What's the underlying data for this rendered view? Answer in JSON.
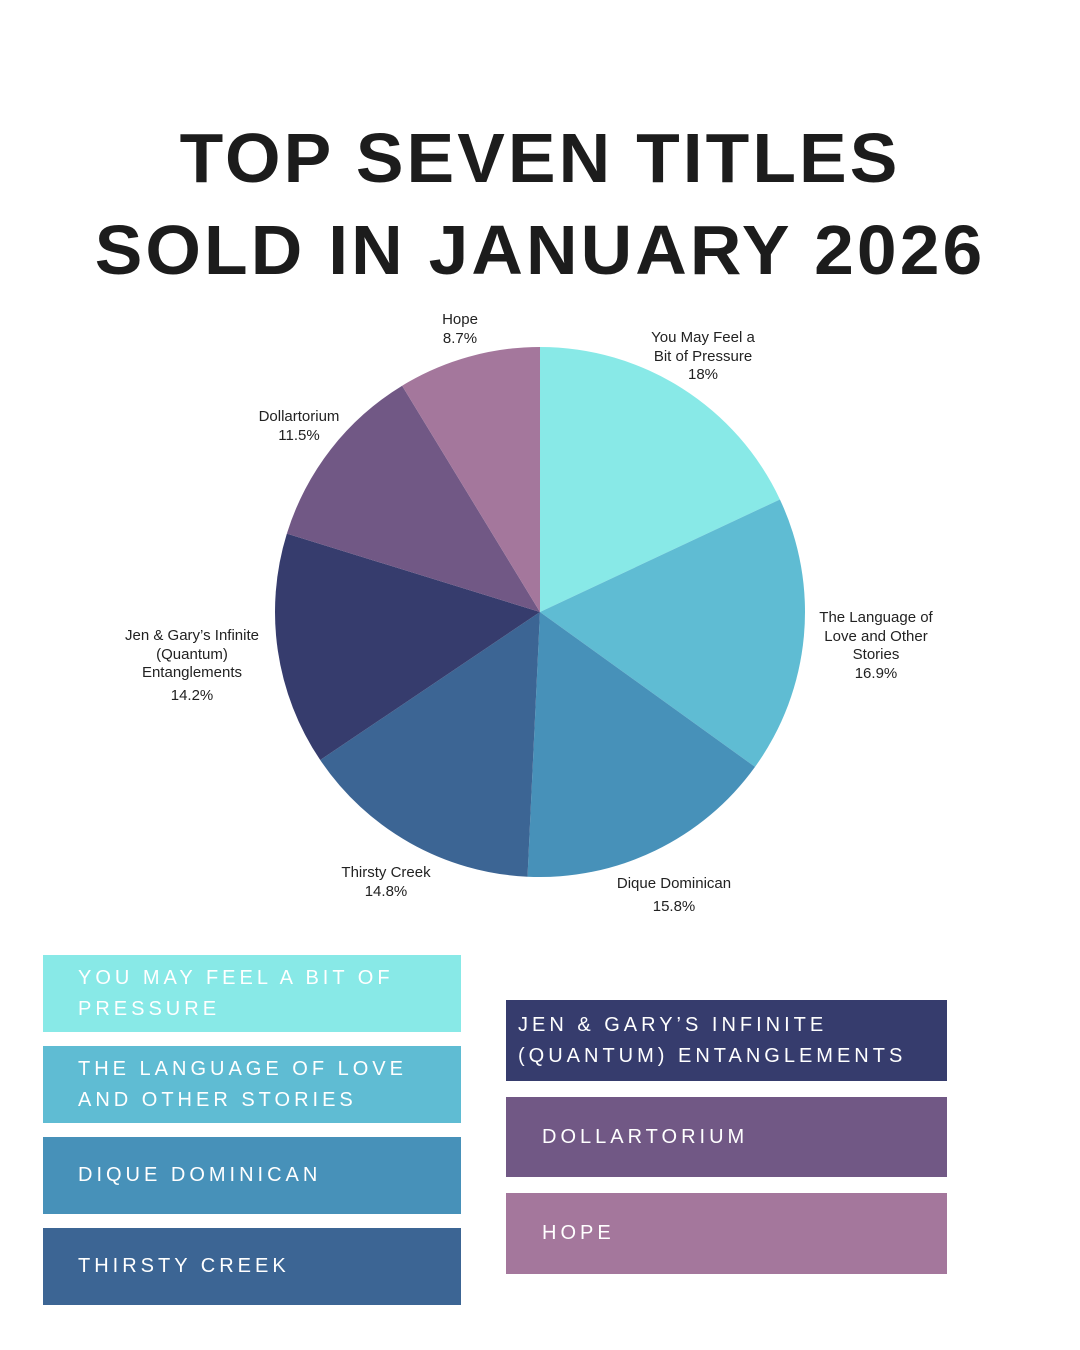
{
  "title": {
    "line1": "TOP SEVEN TITLES",
    "line2": "SOLD IN JANUARY 2026"
  },
  "chart_data": {
    "type": "pie",
    "title": "Top Seven Titles Sold in January 2026",
    "categories": [
      "You May Feel a Bit of Pressure",
      "The Language of Love and Other Stories",
      "Dique Dominican",
      "Thirsty Creek",
      "Jen & Gary’s Infinite (Quantum) Entanglements",
      "Dollartorium",
      "Hope"
    ],
    "values": [
      18,
      16.9,
      15.8,
      14.8,
      14.2,
      11.5,
      8.7
    ],
    "value_labels": [
      "18%",
      "16.9%",
      "15.8%",
      "14.8%",
      "14.2%",
      "11.5%",
      "8.7%"
    ],
    "colors": [
      "#88e9e7",
      "#5fbcd3",
      "#4791b9",
      "#3c6594",
      "#363c6d",
      "#715885",
      "#a4779c"
    ],
    "start_angle_deg": 0,
    "direction": "clockwise",
    "legend_position": "bottom"
  },
  "pie_labels": [
    {
      "lines": [
        "You May Feel a",
        "Bit of Pressure",
        "18%"
      ]
    },
    {
      "lines": [
        "The Language of",
        "Love and Other",
        "Stories",
        "16.9%"
      ]
    },
    {
      "lines": [
        "Dique Dominican",
        "15.8%"
      ]
    },
    {
      "lines": [
        "Thirsty Creek",
        "14.8%"
      ]
    },
    {
      "lines": [
        "Jen & Gary’s Infinite",
        "(Quantum)",
        "Entanglements",
        "14.2%"
      ]
    },
    {
      "lines": [
        "Dollartorium",
        "11.5%"
      ]
    },
    {
      "lines": [
        "Hope",
        "8.7%"
      ]
    }
  ],
  "legend": [
    {
      "label": "YOU MAY FEEL A BIT OF PRESSURE",
      "color": "#88e9e7"
    },
    {
      "label": "THE LANGUAGE OF LOVE AND OTHER STORIES",
      "color": "#5fbcd3"
    },
    {
      "label": "DIQUE DOMINICAN",
      "color": "#4791b9"
    },
    {
      "label": "THIRSTY CREEK",
      "color": "#3c6594"
    },
    {
      "label": "JEN & GARY’S INFINITE (QUANTUM) ENTANGLEMENTS",
      "color": "#363c6d"
    },
    {
      "label": "DOLLARTORIUM",
      "color": "#715885"
    },
    {
      "label": "HOPE",
      "color": "#a4779c"
    }
  ]
}
